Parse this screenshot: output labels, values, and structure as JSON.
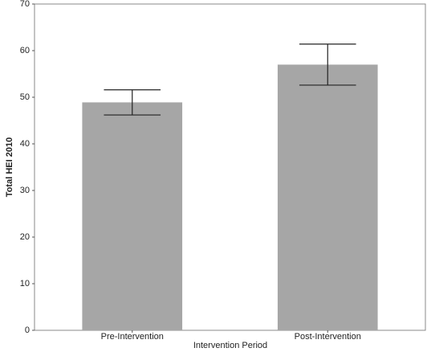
{
  "chart_data": {
    "type": "bar",
    "x_label": "Intervention Period",
    "y_label": "Total HEI 2010",
    "categories": [
      "Pre-Intervention",
      "Post-Intervention"
    ],
    "values": [
      48.9,
      57.0
    ],
    "errors": [
      2.7,
      4.4
    ],
    "color": "#a6a6a6",
    "ylim": [
      0,
      70
    ],
    "yticks": [
      0,
      10,
      20,
      30,
      40,
      50,
      60,
      70
    ],
    "grid": false
  }
}
